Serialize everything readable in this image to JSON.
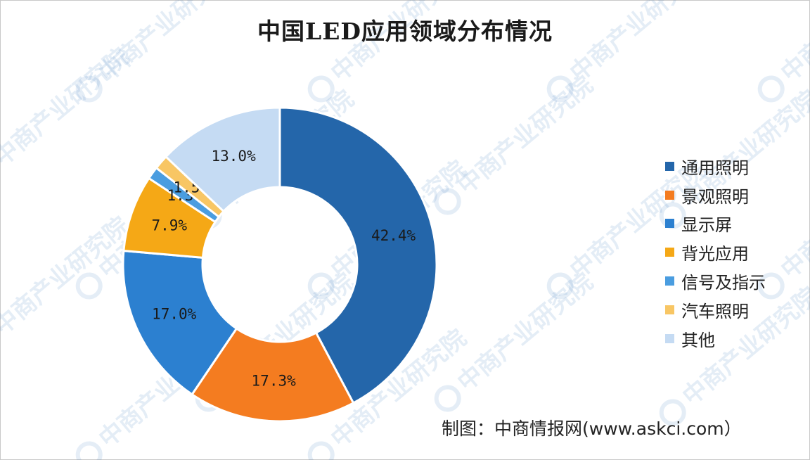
{
  "title": "中国LED应用领域分布情况",
  "source_note": "制图：中商情报网(www.askci.com）",
  "watermark_text": "中商产业研究院",
  "chart_data": {
    "type": "pie",
    "variant": "donut",
    "title": "中国LED应用领域分布情况",
    "legend_position": "right",
    "slices": [
      {
        "label": "通用照明",
        "value": 42.4,
        "display": "42.4%",
        "color": "#2466aa"
      },
      {
        "label": "景观照明",
        "value": 17.3,
        "display": "17.3%",
        "color": "#f47c20"
      },
      {
        "label": "显示屏",
        "value": 17.0,
        "display": "17.0%",
        "color": "#2c80d0"
      },
      {
        "label": "背光应用",
        "value": 7.9,
        "display": "7.9%",
        "color": "#f5a816"
      },
      {
        "label": "信号及指示",
        "value": 1.3,
        "display": "1.3%",
        "color": "#4a9de0"
      },
      {
        "label": "汽车照明",
        "value": 1.5,
        "display": "1.5%",
        "color": "#f8c664"
      },
      {
        "label": "其他",
        "value": 13.0,
        "display": "13.0%",
        "color": "#c5dbf3"
      }
    ]
  }
}
